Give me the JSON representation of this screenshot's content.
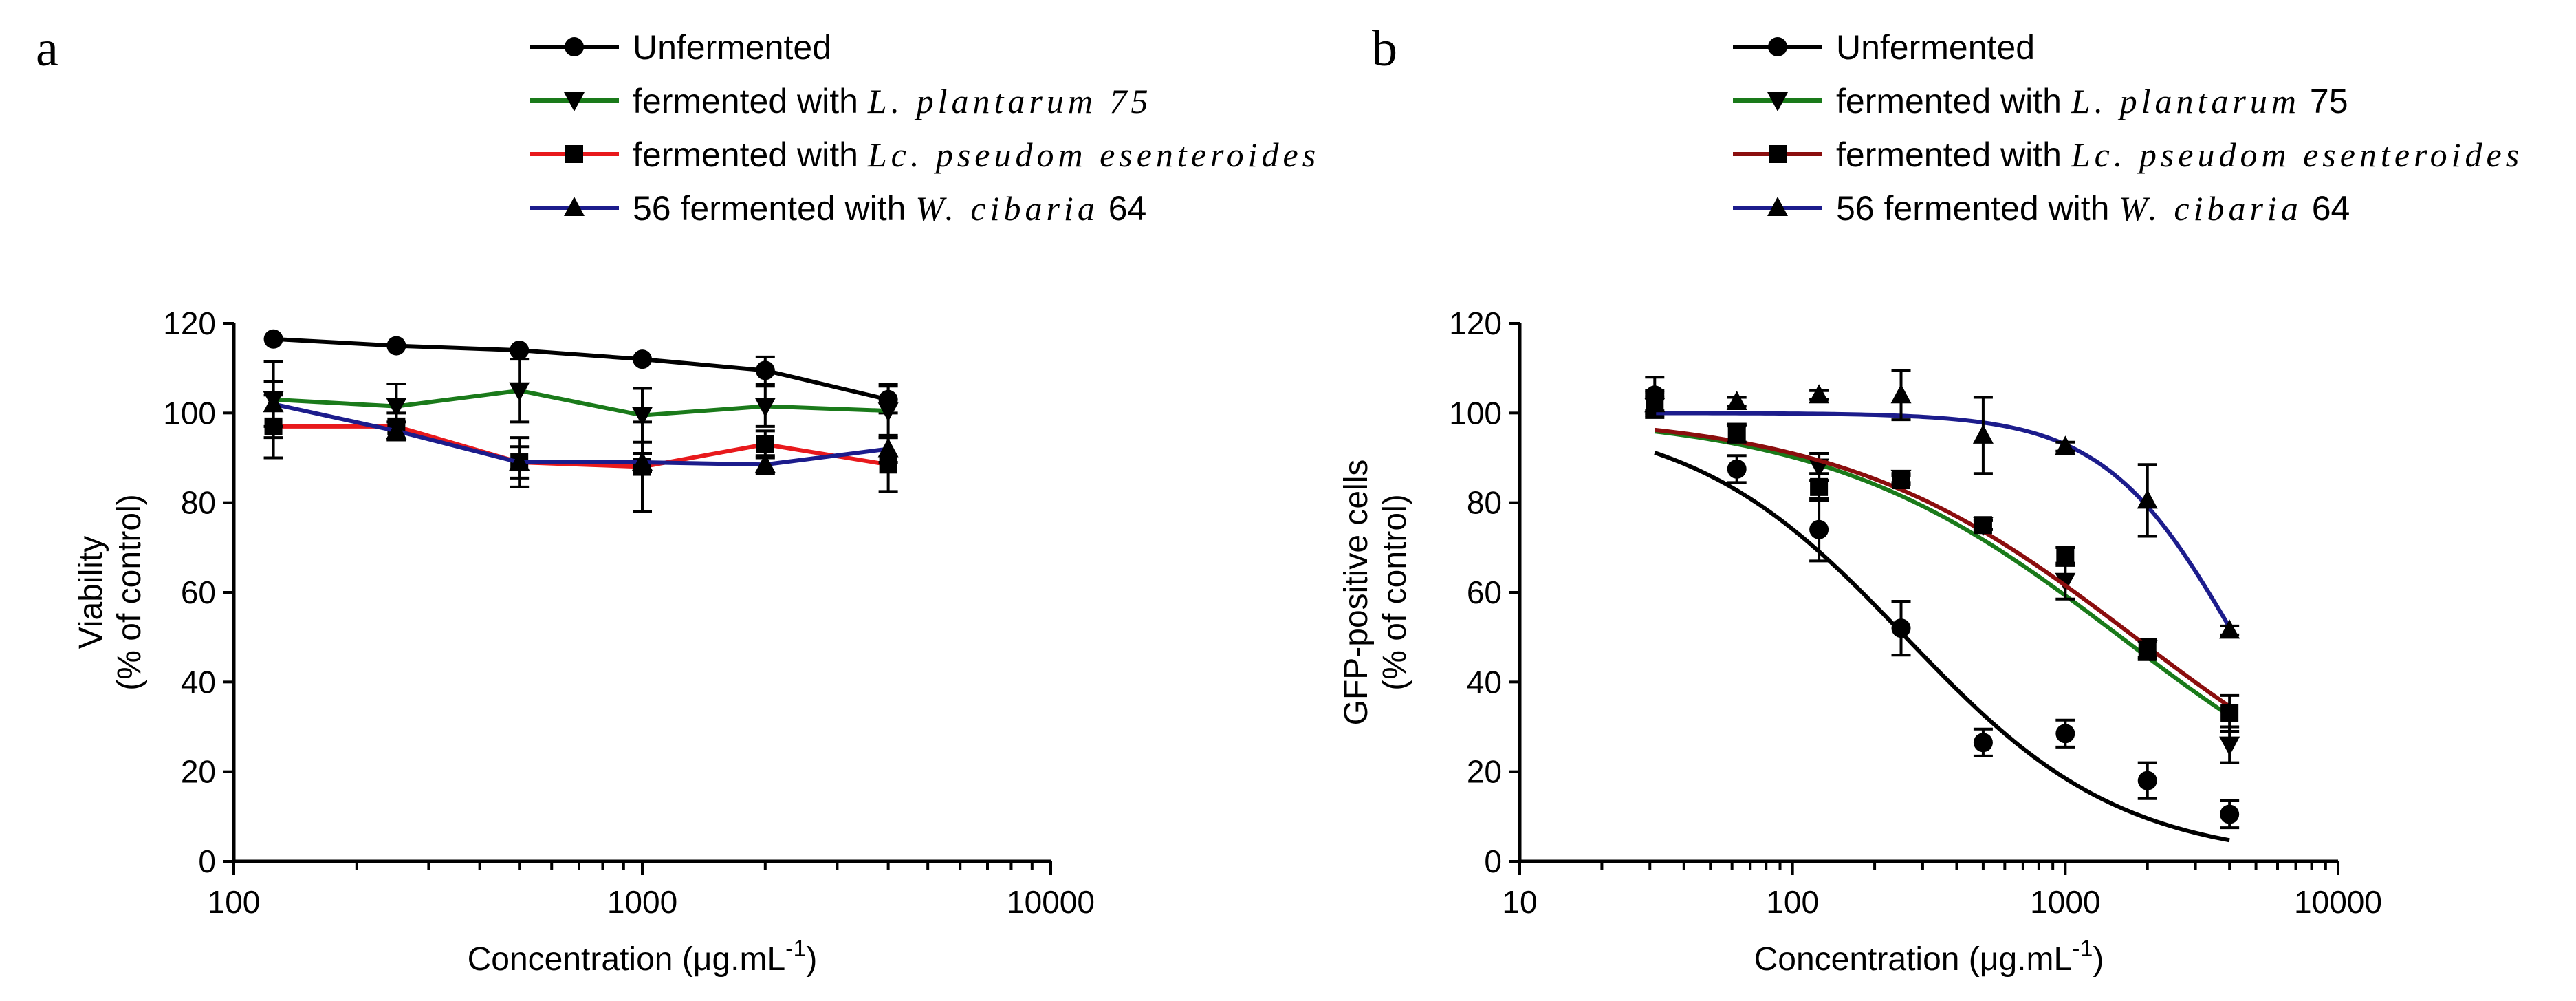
{
  "chart_data": [
    {
      "type": "line",
      "panel_label": "a",
      "xlabel": "Concentration (μg.mL",
      "xlabel_sup": "-1",
      "xlabel_end": ")",
      "ylabel_line1": "Viability",
      "ylabel_line2": "(% of control)",
      "xscale": "log",
      "xlim": [
        100,
        10000
      ],
      "ylim": [
        0,
        120
      ],
      "xticks": [
        100,
        1000,
        10000
      ],
      "yticks": [
        0,
        20,
        40,
        60,
        80,
        100,
        120
      ],
      "grid": false,
      "legend_position": "top",
      "x": [
        125,
        250,
        500,
        1000,
        2000,
        4000
      ],
      "series": [
        {
          "name": "Unfermented",
          "legend": [
            "Unfermented"
          ],
          "color": "#000000",
          "marker": "circle",
          "values": [
            116.5,
            115,
            114,
            112,
            109.5,
            103
          ],
          "err": [
            0,
            0,
            0,
            0,
            3,
            3
          ]
        },
        {
          "name": "fermented with L. plantarum 75",
          "legend": [
            "fermented with ",
            "L. plantarum 75",
            ""
          ],
          "color": "#1a7a1a",
          "marker": "triangle-down",
          "values": [
            103,
            101.5,
            105,
            99.5,
            101.5,
            100.5
          ],
          "err": [
            8.5,
            5,
            7,
            6,
            4.5,
            6
          ]
        },
        {
          "name": "fermented with Lc. pseudomesenteroides",
          "legend": [
            "fermented with ",
            "Lc. pseudom esenteroides",
            ""
          ],
          "color": "#e8191c",
          "marker": "square",
          "values": [
            97,
            97,
            89,
            88,
            93,
            88.5
          ],
          "err": [
            7,
            3,
            5.5,
            10,
            3,
            6
          ]
        },
        {
          "name": "56 fermented with W. cibaria 64",
          "legend": [
            "56 fermented with ",
            "W. cibaria",
            " 64"
          ],
          "color": "#1c1c8c",
          "marker": "triangle-up",
          "values": [
            102,
            96,
            89,
            89,
            88.5,
            92
          ],
          "err": [
            5,
            2,
            3.5,
            2,
            2,
            3
          ]
        }
      ]
    },
    {
      "type": "scatter",
      "panel_label": "b",
      "xlabel": "Concentration (μg.mL",
      "xlabel_sup": "-1",
      "xlabel_end": ")",
      "ylabel_line1": "GFP-positive cells",
      "ylabel_line2": "(% of control)",
      "xscale": "log",
      "xlim": [
        10,
        10000
      ],
      "ylim": [
        0,
        120
      ],
      "xticks": [
        10,
        100,
        1000,
        10000
      ],
      "yticks": [
        0,
        20,
        40,
        60,
        80,
        100,
        120
      ],
      "grid": false,
      "legend_position": "top",
      "x": [
        31.25,
        62.5,
        125,
        250,
        500,
        1000,
        2000,
        4000
      ],
      "series": [
        {
          "name": "Unfermented",
          "legend": [
            "Unfermented"
          ],
          "color": "#000000",
          "marker": "circle",
          "values": [
            104,
            87.5,
            74,
            52,
            26.5,
            28.5,
            18,
            10.5
          ],
          "err": [
            4,
            3,
            7,
            6,
            3,
            3,
            4,
            3
          ],
          "fit": {
            "top": 100,
            "bottom": 0,
            "ec50": 260,
            "hill": 1.1
          }
        },
        {
          "name": "fermented with L. plantarum 75",
          "legend": [
            "fermented with ",
            "L. plantarum",
            " 75"
          ],
          "color": "#1a7a1a",
          "marker": "triangle-down",
          "values": [
            101.5,
            95.5,
            88,
            85.5,
            75,
            62.5,
            47.5,
            26
          ],
          "err": [
            2,
            2,
            3,
            1,
            1,
            4,
            2,
            4
          ],
          "fit": {
            "top": 100,
            "bottom": 0,
            "ec50": 1600,
            "hill": 0.8
          }
        },
        {
          "name": "fermented with Lc. pseudomesenteroides",
          "legend": [
            "fermented with ",
            "Lc. pseudom esenteroides",
            ""
          ],
          "color": "#8b0e0e",
          "marker": "square",
          "values": [
            102.5,
            95.5,
            83.5,
            85,
            75,
            68,
            47,
            33
          ],
          "err": [
            2,
            2,
            3,
            1,
            1,
            2,
            2,
            4
          ],
          "fit": {
            "top": 100,
            "bottom": 0,
            "ec50": 1800,
            "hill": 0.8
          }
        },
        {
          "name": "56 fermented with W. cibaria 64",
          "legend": [
            "56 fermented with ",
            "W. cibaria",
            " 64"
          ],
          "color": "#1c1c8c",
          "marker": "triangle-up",
          "values": [
            102,
            102.5,
            104,
            104,
            95,
            92.5,
            80.5,
            51.5
          ],
          "err": [
            3,
            1,
            1,
            5.5,
            8.5,
            1,
            8,
            1
          ],
          "fit": {
            "top": 100,
            "bottom": 0,
            "ec50": 4200,
            "hill": 1.8
          }
        }
      ]
    }
  ]
}
